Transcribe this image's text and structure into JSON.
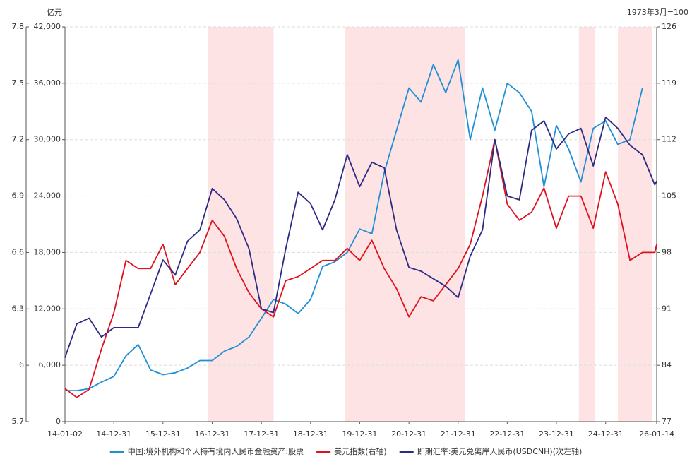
{
  "chart_data": {
    "type": "line",
    "y_unit_label": "亿元",
    "y2_unit_label": "1973年3月=100",
    "x": [
      "14-01-02",
      "14-03-31",
      "14-06-30",
      "14-09-30",
      "14-12-31",
      "15-03-31",
      "15-06-30",
      "15-09-30",
      "15-12-31",
      "16-03-31",
      "16-06-30",
      "16-09-30",
      "16-12-31",
      "17-03-31",
      "17-06-30",
      "17-09-30",
      "17-12-31",
      "18-03-31",
      "18-06-30",
      "18-09-30",
      "18-12-31",
      "19-03-31",
      "19-06-30",
      "19-09-30",
      "19-12-31",
      "20-03-31",
      "20-06-30",
      "20-09-30",
      "20-12-31",
      "21-03-31",
      "21-06-30",
      "21-09-30",
      "21-12-31",
      "22-03-31",
      "22-06-30",
      "22-09-30",
      "22-12-31",
      "23-03-31",
      "23-06-30",
      "23-09-30",
      "23-12-31",
      "24-03-31",
      "24-06-30",
      "24-09-30",
      "24-12-31",
      "25-03-31",
      "25-06-30",
      "25-09-30",
      "25-12-31",
      "26-01-14"
    ],
    "series": [
      {
        "name": "中国:境外机构和个人持有境内人民币金融资产:股票",
        "color": "#1f8fd6",
        "axis": "y",
        "values": [
          3300,
          3300,
          3500,
          4200,
          4800,
          7000,
          8200,
          5500,
          5000,
          5200,
          5700,
          6500,
          6500,
          7500,
          8000,
          9000,
          11000,
          13000,
          12500,
          11500,
          13000,
          16500,
          17000,
          18000,
          20500,
          20000,
          26500,
          31000,
          35500,
          34000,
          38000,
          35000,
          38500,
          30000,
          35500,
          31000,
          36000,
          35000,
          33000,
          25000,
          31500,
          29000,
          25500,
          31200,
          32000,
          29500,
          30000,
          35500,
          null,
          null
        ]
      },
      {
        "name": "美元指数(右轴)",
        "color": "#e0111d",
        "axis": "y2",
        "values": [
          81.1,
          80,
          81,
          86,
          90.5,
          97,
          96,
          96,
          99,
          94,
          96,
          98,
          102,
          100,
          96,
          93,
          91,
          90,
          94.5,
          95,
          96,
          97,
          97,
          98.5,
          97,
          99.5,
          96,
          93.5,
          90,
          92.5,
          92,
          94,
          96,
          99,
          105,
          112,
          104,
          102,
          103,
          106,
          101,
          105,
          105,
          101,
          108,
          104,
          97,
          98,
          98,
          99
        ]
      },
      {
        "name": "即期汇率:美元兑离岸人民币(USDCNH)(次左轴)",
        "color": "#2c2a85",
        "axis": "y3",
        "values": [
          6.04,
          6.22,
          6.25,
          6.15,
          6.2,
          6.2,
          6.2,
          6.38,
          6.56,
          6.48,
          6.66,
          6.72,
          6.94,
          6.88,
          6.78,
          6.62,
          6.3,
          6.28,
          6.62,
          6.92,
          6.86,
          6.72,
          6.88,
          7.12,
          6.95,
          7.08,
          7.05,
          6.72,
          6.52,
          6.5,
          6.46,
          6.42,
          6.36,
          6.58,
          6.72,
          7.2,
          6.9,
          6.88,
          7.25,
          7.3,
          7.15,
          7.23,
          7.26,
          7.06,
          7.32,
          7.26,
          7.17,
          7.12,
          6.96,
          6.98
        ]
      }
    ],
    "xlim": [
      "14-01-02",
      "26-01-14"
    ],
    "xticks": [
      "14-01-02",
      "14-12-31",
      "15-12-31",
      "16-12-31",
      "17-12-31",
      "18-12-31",
      "19-12-31",
      "20-12-31",
      "21-12-31",
      "22-12-31",
      "23-12-31",
      "24-12-31",
      "26-01-14"
    ],
    "ylim": [
      0,
      42000
    ],
    "yticks": [
      0,
      {
        "value": 6000,
        "label": "6,000"
      },
      {
        "value": 12000,
        "label": "12,000"
      },
      {
        "value": 18000,
        "label": "18,000"
      },
      {
        "value": 24000,
        "label": "24,000"
      },
      {
        "value": 30000,
        "label": "30,000"
      },
      {
        "value": 36000,
        "label": "36,000"
      },
      {
        "value": 42000,
        "label": "42,000"
      }
    ],
    "y2lim": [
      77,
      126
    ],
    "y2ticks": [
      77,
      84,
      91,
      98,
      105,
      112,
      119,
      126
    ],
    "y3lim": [
      5.7,
      7.8
    ],
    "y3ticks": [
      5.7,
      6,
      6.3,
      6.6,
      6.9,
      7.2,
      7.5,
      7.8
    ],
    "shaded_ranges": [
      [
        "16-12-01",
        "18-04-01"
      ],
      [
        "19-09-10",
        "22-02-20"
      ],
      [
        "24-06-15",
        "24-10-15"
      ],
      [
        "25-04-01",
        "25-12-10"
      ]
    ],
    "shade_color": "#fde3e3",
    "grid": true,
    "legend": "bottom"
  }
}
